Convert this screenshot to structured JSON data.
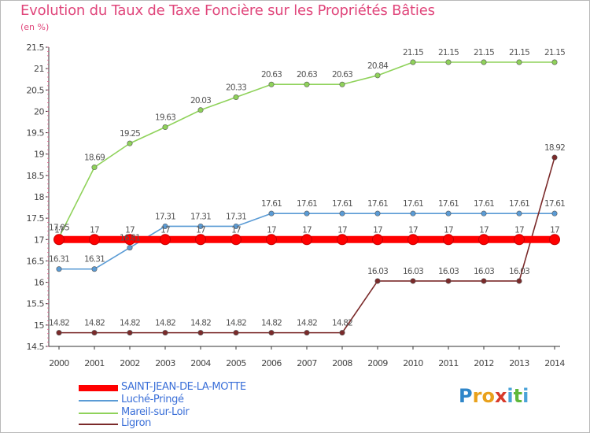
{
  "title": "Evolution du Taux de Taxe Foncière sur les Propriétés Bâties",
  "subtitle": "(en %)",
  "chart_data": {
    "type": "line",
    "title": "Evolution du Taux de Taxe Foncière sur les Propriétés Bâties",
    "ylabel": "(en %)",
    "xlabel": "",
    "ylim": [
      14.5,
      21.5
    ],
    "yticks": [
      "14.5",
      "15",
      "15.5",
      "16",
      "16.5",
      "17",
      "17.5",
      "18",
      "18.5",
      "19",
      "19.5",
      "20",
      "20.5",
      "21",
      "21.5"
    ],
    "grid": false,
    "categories": [
      "2000",
      "2001",
      "2002",
      "2003",
      "2004",
      "2005",
      "2006",
      "2007",
      "2008",
      "2009",
      "2010",
      "2011",
      "2012",
      "2013",
      "2014"
    ],
    "series": [
      {
        "name": "SAINT-JEAN-DE-LA-MOTTE",
        "color": "#ff0000",
        "values": [
          17,
          17,
          17,
          17,
          17,
          17,
          17,
          17,
          17,
          17,
          17,
          17,
          17,
          17,
          17
        ],
        "labels": [
          "17",
          "17",
          "17",
          "17",
          "17",
          "17",
          "17",
          "17",
          "17",
          "17",
          "17",
          "17",
          "17",
          "17",
          "17"
        ]
      },
      {
        "name": "Luché-Pringé",
        "color": "#5a9bd5",
        "values": [
          16.31,
          16.31,
          16.81,
          17.31,
          17.31,
          17.31,
          17.61,
          17.61,
          17.61,
          17.61,
          17.61,
          17.61,
          17.61,
          17.61,
          17.61
        ],
        "labels": [
          "16.31",
          "16.31",
          "16.81",
          "17.31",
          "17.31",
          "17.31",
          "17.61",
          "17.61",
          "17.61",
          "17.61",
          "17.61",
          "17.61",
          "17.61",
          "17.61",
          "17.61"
        ]
      },
      {
        "name": "Mareil-sur-Loir",
        "color": "#8fd25a",
        "values": [
          17.05,
          18.69,
          19.25,
          19.63,
          20.03,
          20.33,
          20.63,
          20.63,
          20.63,
          20.84,
          21.15,
          21.15,
          21.15,
          21.15,
          21.15
        ],
        "labels": [
          "17.05",
          "18.69",
          "19.25",
          "19.63",
          "20.03",
          "20.33",
          "20.63",
          "20.63",
          "20.63",
          "20.84",
          "21.15",
          "21.15",
          "21.15",
          "21.15",
          "21.15"
        ]
      },
      {
        "name": "Ligron",
        "color": "#7b2a2a",
        "values": [
          14.82,
          14.82,
          14.82,
          14.82,
          14.82,
          14.82,
          14.82,
          14.82,
          14.82,
          16.03,
          16.03,
          16.03,
          16.03,
          16.03,
          18.92
        ],
        "labels": [
          "14.82",
          "14.82",
          "14.82",
          "14.82",
          "14.82",
          "14.82",
          "14.82",
          "14.82",
          "14.82",
          "16.03",
          "16.03",
          "16.03",
          "16.03",
          "16.03",
          "18.92"
        ]
      }
    ],
    "legend": "bottom-left"
  },
  "logo": {
    "letters": [
      "P",
      "r",
      "o",
      "x",
      "i",
      "t",
      "i"
    ],
    "colors": [
      "#2f86c9",
      "#e9a11b",
      "#e9a11b",
      "#d83a2a",
      "#4aa3d8",
      "#5fb83a",
      "#4aa3d8"
    ]
  }
}
